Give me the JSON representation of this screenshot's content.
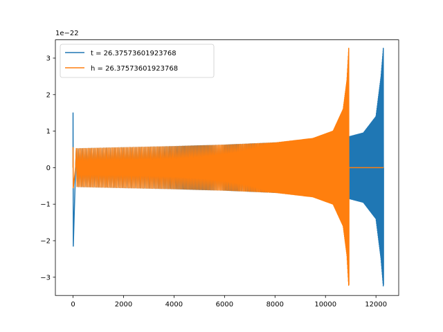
{
  "chart_data": {
    "type": "line",
    "title": "",
    "xlabel": "",
    "ylabel": "",
    "y_offset_label": "1e−22",
    "xlim": [
      -700,
      12900
    ],
    "ylim": [
      -3.5,
      3.5
    ],
    "x_ticks": [
      0,
      2000,
      4000,
      6000,
      8000,
      10000,
      12000
    ],
    "x_tick_labels": [
      "0",
      "2000",
      "4000",
      "6000",
      "8000",
      "10000",
      "12000"
    ],
    "y_ticks": [
      -3,
      -2,
      -1,
      0,
      1,
      2,
      3
    ],
    "y_tick_labels": [
      "−3",
      "−2",
      "−1",
      "0",
      "1",
      "2",
      "3"
    ],
    "grid": false,
    "legend_position": "upper-left",
    "series": [
      {
        "name": "t = 26.37573601923768",
        "color": "#1f77b4",
        "envelope_points": [
          {
            "x": 100,
            "amp": 0.52
          },
          {
            "x": 2000,
            "amp": 0.55
          },
          {
            "x": 4000,
            "amp": 0.58
          },
          {
            "x": 6000,
            "amp": 0.62
          },
          {
            "x": 8000,
            "amp": 0.68
          },
          {
            "x": 10000,
            "amp": 0.76
          },
          {
            "x": 10950,
            "amp": 0.85
          },
          {
            "x": 11500,
            "amp": 0.95
          },
          {
            "x": 12000,
            "amp": 1.4
          },
          {
            "x": 12200,
            "amp": 2.5
          },
          {
            "x": 12290,
            "amp": 3.25
          }
        ],
        "initial_spike": {
          "x": 0,
          "max": 1.5,
          "min": -2.15
        },
        "peak": {
          "x": 12290,
          "max": 3.27,
          "min": -3.2
        },
        "flat_after": 12300,
        "flat_end": 12300
      },
      {
        "name": "h = 26.37573601923768",
        "color": "#ff7f0e",
        "envelope_points": [
          {
            "x": 100,
            "amp": 0.52
          },
          {
            "x": 2000,
            "amp": 0.55
          },
          {
            "x": 4000,
            "amp": 0.58
          },
          {
            "x": 6000,
            "amp": 0.62
          },
          {
            "x": 8000,
            "amp": 0.68
          },
          {
            "x": 9500,
            "amp": 0.8
          },
          {
            "x": 10300,
            "amp": 1.0
          },
          {
            "x": 10700,
            "amp": 1.6
          },
          {
            "x": 10850,
            "amp": 2.4
          },
          {
            "x": 10920,
            "amp": 3.25
          }
        ],
        "initial_spike": {
          "x": 0,
          "max": 0.55,
          "min": -0.55
        },
        "peak": {
          "x": 10920,
          "max": 3.27,
          "min": -3.2
        },
        "flat_after": 10930,
        "flat_end": 12300
      }
    ]
  }
}
